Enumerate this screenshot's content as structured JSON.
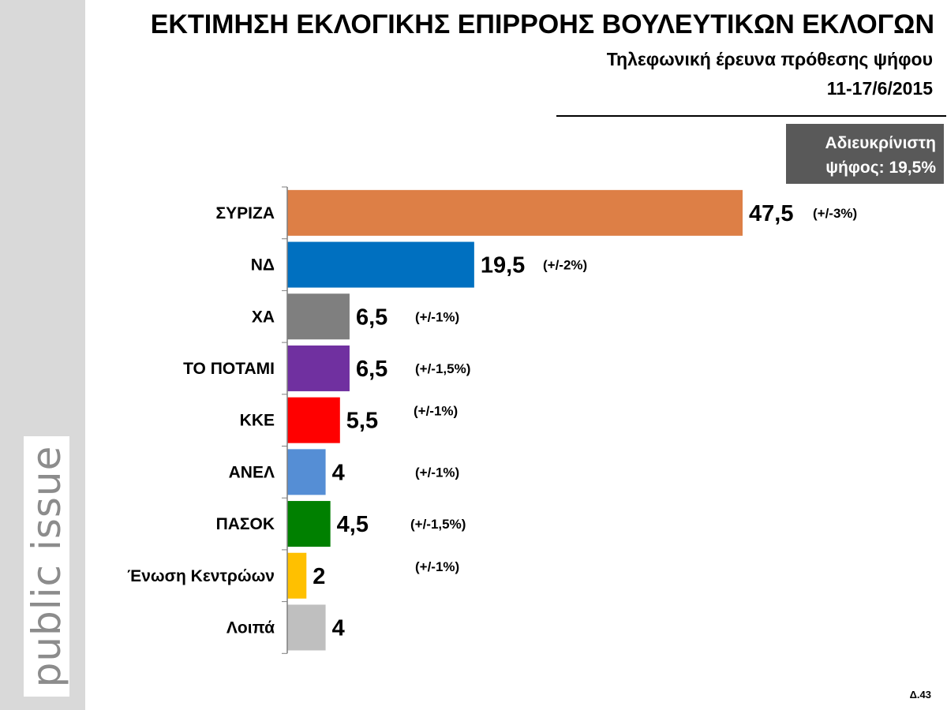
{
  "header": {
    "title": "ΕΚΤΙΜΗΣΗ ΕΚΛΟΓΙΚΗΣ ΕΠΙΡΡΟΗΣ ΒΟΥΛΕΥΤΙΚΩΝ ΕΚΛΟΓΩΝ",
    "subtitle": "Τηλεφωνική έρευνα πρόθεσης ψήφου",
    "date": "11-17/6/2015"
  },
  "undecided": {
    "line1": "Αδιευκρίνιστη",
    "line2": "ψήφος: 19,5%"
  },
  "brand": {
    "text": "public issue"
  },
  "footer": {
    "slide_number": "Δ.43"
  },
  "chart_data": {
    "type": "bar",
    "orientation": "horizontal",
    "categories": [
      "ΣΥΡΙΖΑ",
      "ΝΔ",
      "ΧΑ",
      "ΤΟ ΠΟΤΑΜΙ",
      "ΚΚΕ",
      "ΑΝΕΛ",
      "ΠΑΣΟΚ",
      "Ένωση Κεντρώων",
      "Λοιπά"
    ],
    "values": [
      47.5,
      19.5,
      6.5,
      6.5,
      5.5,
      4,
      4.5,
      2,
      4
    ],
    "value_labels": [
      "47,5",
      "19,5",
      "6,5",
      "6,5",
      "5,5",
      "4",
      "4,5",
      "2",
      "4"
    ],
    "margins": [
      "(+/-3%)",
      "(+/-2%)",
      "(+/-1%)",
      "(+/-1,5%)",
      "(+/-1%)",
      "(+/-1%)",
      "(+/-1,5%)",
      "(+/-1%)",
      ""
    ],
    "colors": [
      "#dd7f46",
      "#0070c0",
      "#7f7f7f",
      "#7030a0",
      "#ff0000",
      "#558ed5",
      "#008000",
      "#ffc000",
      "#bfbfbf"
    ],
    "title": "",
    "xlabel": "",
    "ylabel": "",
    "xlim": [
      0,
      47.5
    ],
    "grid": false,
    "legend": "none"
  }
}
